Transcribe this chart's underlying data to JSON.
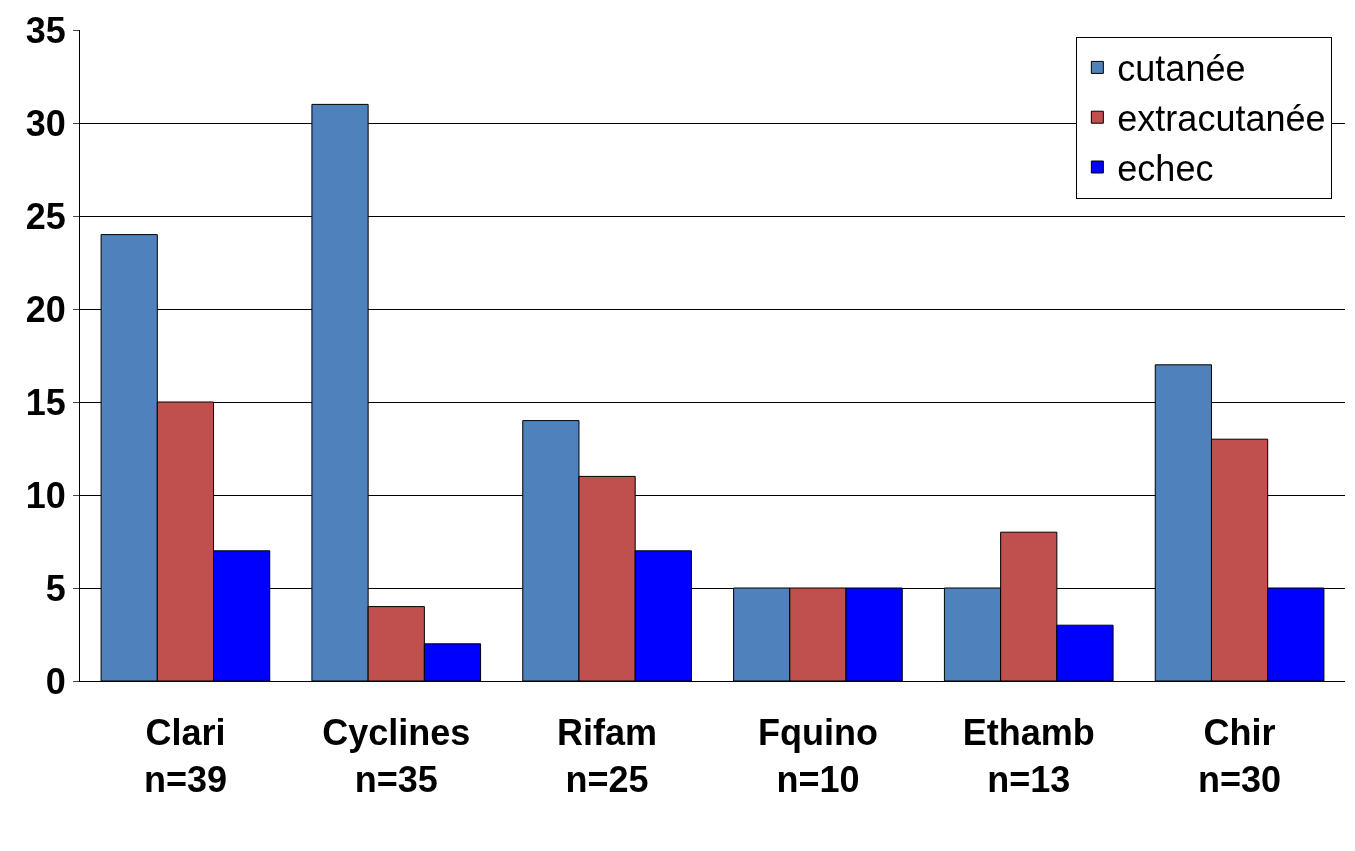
{
  "chart_data": {
    "type": "bar",
    "categories": [
      "Clari\nn=39",
      "Cyclines\nn=35",
      "Rifam\nn=25",
      "Fquino\nn=10",
      "Ethamb\nn=13",
      "Chir\nn=30"
    ],
    "series": [
      {
        "name": "cutanée",
        "color": "#4f81bd",
        "values": [
          24,
          31,
          14,
          5,
          5,
          17
        ]
      },
      {
        "name": "extracutanée",
        "color": "#c0504d",
        "values": [
          15,
          4,
          11,
          5,
          8,
          13
        ]
      },
      {
        "name": "echec",
        "color": "#0000ff",
        "values": [
          7,
          2,
          7,
          5,
          3,
          5
        ]
      }
    ],
    "ylim": [
      0,
      35
    ],
    "yticks": [
      0,
      5,
      10,
      15,
      20,
      25,
      30,
      35
    ],
    "grid": "y",
    "legend": "top right"
  }
}
